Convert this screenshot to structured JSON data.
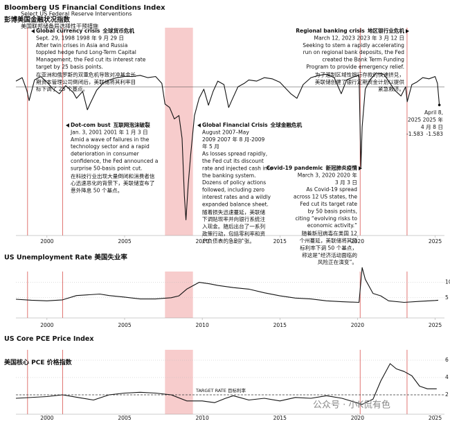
{
  "header": {
    "title": "Bloomberg US Financial Conditions Index",
    "title_zh": "彭博美国金融状况指数",
    "subtitle": "Select US Federal Reserve Interventions",
    "subtitle_zh": "美国联邦储备局选择性干预措施"
  },
  "interventions": {
    "x": [
      1998.75,
      2001.01,
      2020.17,
      2023.19
    ],
    "shaded": [
      2007.6,
      2009.4
    ]
  },
  "annotations": [
    {
      "title": "Global currency crisis",
      "title_zh": "全球货币危机",
      "lines": [
        "Sept. 29, 1998  1998 年 9 月 29 日",
        "After twin crises in Asia and Russia",
        "toppled hedge fund Long-Term Capital",
        "Management, the Fed cut its interest rate",
        "target by 25 basis points."
      ],
      "lines_zh": [
        "在亚洲和俄罗斯的双重危机导致对冲基金长",
        "期资本管理公司倒闭后，美联储将其利率目",
        "标下调了 25 个基点。"
      ]
    },
    {
      "title": "Dot-com bust",
      "title_zh": "互联网泡沫破裂",
      "lines": [
        "Jan. 3, 2001  2001 年 1 月 3 日",
        "Amid a wave of failures in the",
        "technology sector and a rapid",
        "deterioration in consumer",
        "confidence, the Fed announced a",
        "surprise 50-basis point cut."
      ],
      "lines_zh": [
        "在科技行业出现大量倒闭和消费者信",
        "心迅速恶化的背景下，美联储宣布了",
        "意外降息 50 个基点。"
      ]
    },
    {
      "title": "Global Financial Crisis",
      "title_zh": "全球金融危机",
      "lines": [
        "August 2007–May",
        "2009  2007 年 8 月-2009",
        "年 5 月",
        "As losses spread rapidly,",
        "the Fed cut its discount",
        "rate and injected cash into",
        "the banking system.",
        "Dozens of policy actions",
        "followed, including zero",
        "interest rates and a wildly",
        "expanded balance sheet."
      ],
      "lines_zh": [
        "随着损失迅速蔓延，美联储",
        "下调贴现率并向银行系统注",
        "入现金。随后出台了一系列",
        "政策行动，包括零利率和资",
        "产负债表的急剧扩张。"
      ]
    },
    {
      "title": "Regional banking crisis",
      "title_zh": "地区银行业危机",
      "lines": [
        "March 12, 2023  2023 年 3 月 12 日",
        "Seeking to stem a rapidly accelerating",
        "run on regional bank deposits, the Fed",
        "created the Bank Term Funding",
        "Program to provide emergency relief."
      ],
      "lines_zh": [
        "为了遏制区域性银行存款的快速挤兑，",
        "美联储创建了银行定期资金计划以提供",
        "紧急救济。"
      ]
    },
    {
      "title": "Covid-19 pandemic",
      "title_zh": "新冠肺炎疫情",
      "lines": [
        "March 3, 2020  2020 年",
        "3 月 3 日",
        "As Covid-19 spread",
        "across 12 US states, the",
        "Fed cut its target rate",
        "by 50 basis points,",
        "citing “evolving risks to",
        "economic activity.”"
      ],
      "lines_zh": [
        "随着新冠病毒在美国 12",
        "个州蔓延，美联储将其目",
        "标利率下调 50 个基点，",
        "称这是“经济活动面临的",
        "风险正在演变”。"
      ]
    },
    {
      "lines": [
        "April 8,",
        "2025  2025 年",
        "4 月 8 日"
      ]
    }
  ],
  "chart_data": [
    {
      "type": "line",
      "xlim": [
        1998,
        2025.6
      ],
      "xticks": [
        2000,
        2005,
        2010,
        2015,
        2020,
        2025
      ],
      "ylim": [
        -12,
        2.5
      ],
      "x": [
        1998,
        1998.4,
        1998.7,
        1998.85,
        1999.2,
        1999.6,
        2000,
        2000.4,
        2000.8,
        2001.2,
        2001.7,
        2001.9,
        2002.3,
        2002.6,
        2002.8,
        2003.2,
        2003.6,
        2004,
        2004.5,
        2005,
        2005.5,
        2006,
        2006.5,
        2007,
        2007.4,
        2007.6,
        2007.9,
        2008.2,
        2008.5,
        2008.7,
        2008.85,
        2008.95,
        2009.1,
        2009.25,
        2009.5,
        2009.8,
        2010.1,
        2010.4,
        2010.7,
        2011,
        2011.4,
        2011.7,
        2011.9,
        2012.3,
        2012.7,
        2013,
        2013.5,
        2014,
        2014.5,
        2015,
        2015.7,
        2016.1,
        2016.5,
        2017,
        2017.5,
        2018,
        2018.5,
        2018.95,
        2019.3,
        2019.8,
        2020.1,
        2020.22,
        2020.3,
        2020.5,
        2020.8,
        2021.2,
        2021.7,
        2022,
        2022.4,
        2022.8,
        2023.1,
        2023.2,
        2023.5,
        2023.8,
        2024.2,
        2024.6,
        2025,
        2025.15,
        2025.27
      ],
      "series": [
        {
          "color": "#111111",
          "values": [
            0.5,
            0.8,
            -0.3,
            -1.2,
            0.6,
            0.9,
            0.4,
            -0.2,
            -0.6,
            0.1,
            -0.5,
            -1.0,
            -0.4,
            -2.0,
            -1.4,
            -0.3,
            0.3,
            0.6,
            0.8,
            0.9,
            0.9,
            1.0,
            0.8,
            0.9,
            0.3,
            -1.5,
            -1.8,
            -2.8,
            -2.5,
            -4.5,
            -9.5,
            -11.6,
            -8.5,
            -6.0,
            -2.5,
            -1.0,
            -0.2,
            -1.6,
            -0.4,
            0.5,
            0.2,
            -1.8,
            -1.2,
            0.0,
            0.3,
            0.6,
            0.5,
            0.8,
            0.7,
            0.4,
            -0.6,
            -1.0,
            0.2,
            0.8,
            1.0,
            1.1,
            0.8,
            -0.6,
            0.6,
            0.9,
            1.0,
            -7.0,
            -3.5,
            -0.2,
            0.6,
            1.2,
            1.1,
            0.5,
            -0.3,
            -0.8,
            0.0,
            -1.3,
            0.2,
            0.4,
            0.8,
            0.7,
            0.9,
            0.3,
            -1.583
          ]
        }
      ]
    },
    {
      "type": "line",
      "title": "US Unemployment Rate  美国失业率",
      "xlim": [
        1998,
        2025.6
      ],
      "xticks": [
        2000,
        2005,
        2010,
        2015,
        2020,
        2025
      ],
      "ylim": [
        0,
        16
      ],
      "yticks": [
        5,
        10
      ],
      "grid": true,
      "x": [
        1998,
        1999,
        2000,
        2001,
        2001.9,
        2003.4,
        2004,
        2005,
        2006,
        2007,
        2008,
        2008.5,
        2009,
        2009.8,
        2010.5,
        2011,
        2012,
        2013,
        2014,
        2015,
        2016,
        2017,
        2018,
        2019,
        2020.1,
        2020.3,
        2020.5,
        2021,
        2021.5,
        2022,
        2023,
        2024,
        2025,
        2025.2
      ],
      "series": [
        {
          "color": "#111111",
          "values": [
            4.5,
            4.2,
            4.0,
            4.3,
            5.7,
            6.2,
            5.7,
            5.2,
            4.6,
            4.6,
            5.0,
            5.6,
            7.8,
            10.0,
            9.5,
            9.0,
            8.3,
            7.8,
            6.6,
            5.6,
            4.9,
            4.6,
            4.0,
            3.7,
            3.5,
            14.8,
            11.0,
            6.4,
            5.6,
            4.0,
            3.5,
            3.8,
            4.1,
            4.2
          ]
        }
      ]
    },
    {
      "type": "line",
      "title": "US Core PCE Price Index",
      "title_zh": "美国核心 PCE 价格指数",
      "xlim": [
        1998,
        2025.6
      ],
      "xticks": [
        2000,
        2005,
        2010,
        2015,
        2020,
        2025
      ],
      "ylim": [
        0,
        7
      ],
      "yticks": [
        2,
        4,
        6
      ],
      "grid": true,
      "target": 2,
      "target_label": "TARGET RATE  目标利率",
      "x": [
        1998,
        2000,
        2001,
        2002,
        2003,
        2004,
        2005,
        2006,
        2007,
        2008,
        2009,
        2010,
        2010.8,
        2011.5,
        2012,
        2013,
        2014,
        2015,
        2016,
        2017,
        2018,
        2019,
        2020.3,
        2021,
        2021.5,
        2022.1,
        2022.5,
        2023,
        2023.5,
        2024,
        2024.5,
        2025.1
      ],
      "series": [
        {
          "color": "#111111",
          "values": [
            1.6,
            1.8,
            2.0,
            1.7,
            1.4,
            2.0,
            2.2,
            2.3,
            2.2,
            2.0,
            1.3,
            1.3,
            1.1,
            1.6,
            1.9,
            1.4,
            1.6,
            1.3,
            1.7,
            1.6,
            1.9,
            1.6,
            0.9,
            1.5,
            3.6,
            5.6,
            5.0,
            4.7,
            4.2,
            3.0,
            2.7,
            2.7
          ]
        }
      ]
    }
  ],
  "watermark": "公众号 · 小K侃有色"
}
